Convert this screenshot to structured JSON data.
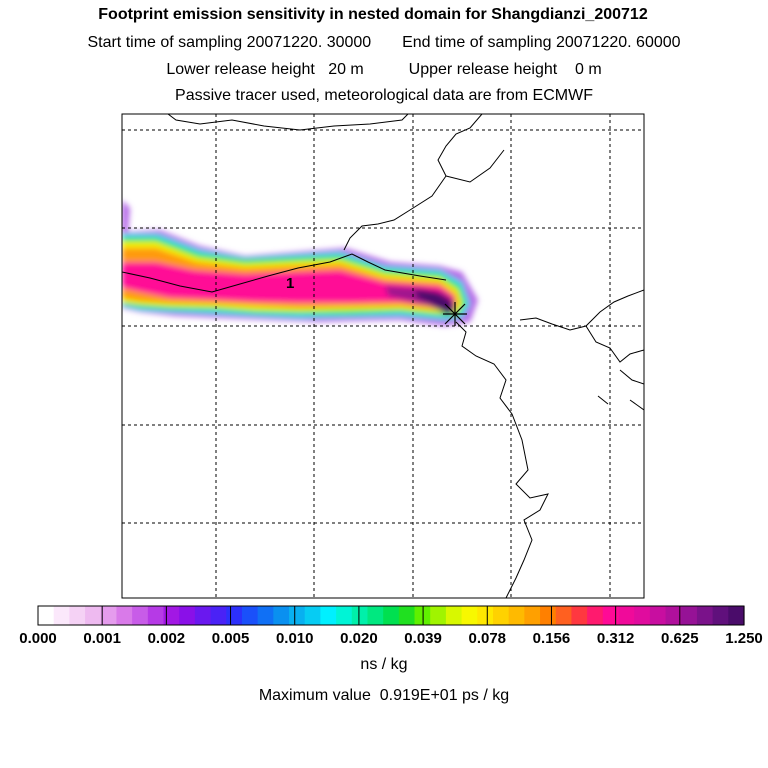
{
  "header": {
    "title": "Footprint emission sensitivity in nested domain for Shangdianzi_200712",
    "start_time": "Start time of sampling 20071220. 30000",
    "end_time": "End time of sampling 20071220. 60000",
    "lower_release": "Lower release height   20 m",
    "upper_release": "Upper release height    0 m",
    "tracer_note": "Passive tracer used, meteorological data are from ECMWF"
  },
  "map": {
    "contour_label": "1",
    "receptor_marker": "star"
  },
  "colorbar": {
    "ticks": [
      "0.000",
      "0.001",
      "0.002",
      "0.005",
      "0.010",
      "0.020",
      "0.039",
      "0.078",
      "0.156",
      "0.312",
      "0.625",
      "1.250"
    ],
    "units": "ns / kg",
    "colors": [
      "#ffffff",
      "#fbe8fb",
      "#f5d2f5",
      "#eebaf0",
      "#e59ced",
      "#d97ae9",
      "#c85ce8",
      "#b63ae6",
      "#a218e4",
      "#8a10e8",
      "#6a18ef",
      "#4a22f6",
      "#2c30fb",
      "#1a50fa",
      "#1070f5",
      "#0a90f0",
      "#08b0f0",
      "#06ccf3",
      "#00f0ff",
      "#00f4d6",
      "#00f0aa",
      "#00e880",
      "#00e050",
      "#20e020",
      "#60f000",
      "#a0f400",
      "#d8f800",
      "#f8f800",
      "#ffe800",
      "#ffd200",
      "#ffba00",
      "#ffa000",
      "#ff8000",
      "#ff6020",
      "#ff3840",
      "#ff1a6e",
      "#ff0a96",
      "#f00a9a",
      "#e00c9e",
      "#c80ea0",
      "#b0109c",
      "#961296",
      "#7a128a",
      "#60107c",
      "#4a0c6a"
    ]
  },
  "max_value": "Maximum value  0.919E+01 ps / kg"
}
